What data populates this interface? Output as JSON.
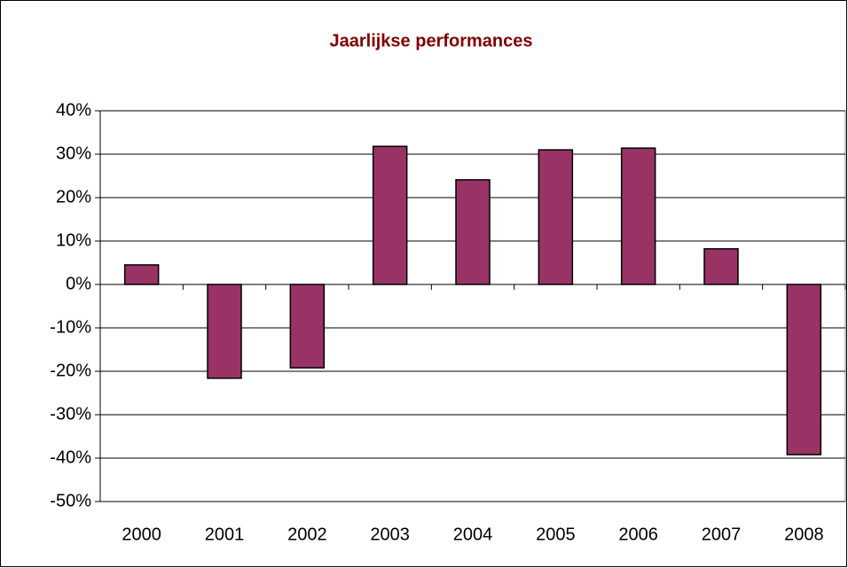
{
  "chart_data": {
    "type": "bar",
    "title": "Jaarlijkse performances",
    "title_color": "#800000",
    "categories": [
      "2000",
      "2001",
      "2002",
      "2003",
      "2004",
      "2005",
      "2006",
      "2007",
      "2008"
    ],
    "values": [
      4.5,
      -21.6,
      -19.2,
      31.8,
      24.1,
      31.0,
      31.4,
      8.2,
      -39.2
    ],
    "color": "#993366",
    "ylim": [
      -50,
      40
    ],
    "yticks": [
      {
        "value": -50,
        "label": "-50%"
      },
      {
        "value": -40,
        "label": "-40%"
      },
      {
        "value": -30,
        "label": "-30%"
      },
      {
        "value": -20,
        "label": "-20%"
      },
      {
        "value": -10,
        "label": "-10%"
      },
      {
        "value": 0,
        "label": "0%"
      },
      {
        "value": 10,
        "label": "10%"
      },
      {
        "value": 20,
        "label": "20%"
      },
      {
        "value": 30,
        "label": "30%"
      },
      {
        "value": 40,
        "label": "40%"
      }
    ],
    "grid": true
  }
}
